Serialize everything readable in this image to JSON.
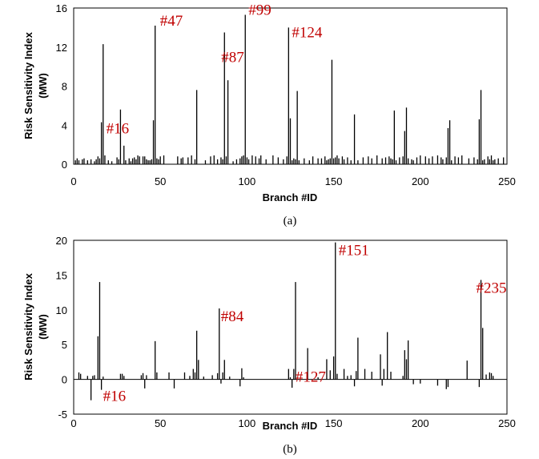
{
  "chart_data": [
    {
      "type": "bar",
      "caption": "(a)",
      "xlabel": "Branch #ID",
      "ylabel": "Risk Sensitivity Index (MW)",
      "xlim": [
        0,
        250
      ],
      "ylim": [
        0,
        16
      ],
      "xticks": [
        "0",
        "50",
        "100",
        "150",
        "200",
        "250"
      ],
      "yticks": [
        "0",
        "4",
        "8",
        "12",
        "16"
      ],
      "x": [
        1,
        2,
        3,
        5,
        6,
        8,
        10,
        12,
        13,
        14,
        15,
        16,
        17,
        18,
        20,
        22,
        25,
        26,
        27,
        29,
        30,
        32,
        33,
        34,
        35,
        36,
        37,
        38,
        40,
        41,
        42,
        43,
        44,
        45,
        46,
        47,
        48,
        49,
        50,
        52,
        60,
        62,
        63,
        66,
        68,
        70,
        71,
        76,
        79,
        81,
        83,
        85,
        86,
        87,
        88,
        89,
        92,
        94,
        96,
        97,
        98,
        99,
        100,
        101,
        103,
        105,
        107,
        108,
        111,
        115,
        118,
        121,
        123,
        124,
        125,
        126,
        127,
        128,
        129,
        130,
        133,
        136,
        138,
        141,
        143,
        145,
        146,
        147,
        148,
        149,
        150,
        151,
        152,
        153,
        155,
        156,
        158,
        160,
        162,
        164,
        167,
        170,
        172,
        175,
        178,
        180,
        182,
        183,
        184,
        185,
        186,
        188,
        190,
        191,
        192,
        193,
        195,
        196,
        198,
        200,
        203,
        205,
        207,
        210,
        212,
        213,
        215,
        216,
        217,
        218,
        220,
        222,
        224,
        228,
        231,
        233,
        234,
        235,
        236,
        237,
        239,
        240,
        241,
        242,
        243,
        245,
        248
      ],
      "values": [
        0.4,
        0.6,
        0.4,
        0.5,
        0.6,
        0.4,
        0.5,
        0.3,
        0.5,
        0.8,
        0.6,
        4.3,
        12.3,
        0.9,
        0.4,
        0.3,
        0.7,
        0.5,
        5.6,
        1.9,
        0.4,
        0.6,
        0.3,
        0.6,
        0.7,
        0.5,
        0.9,
        0.8,
        0.8,
        0.8,
        0.5,
        0.4,
        0.4,
        0.5,
        4.5,
        14.2,
        0.6,
        0.5,
        0.8,
        0.9,
        0.8,
        0.6,
        0.7,
        0.7,
        0.9,
        0.5,
        7.6,
        0.4,
        0.8,
        0.9,
        0.5,
        0.7,
        0.5,
        13.5,
        0.8,
        8.6,
        0.3,
        0.5,
        0.6,
        0.8,
        0.9,
        15.3,
        0.7,
        0.5,
        0.9,
        0.8,
        0.6,
        0.9,
        0.5,
        0.9,
        0.7,
        0.5,
        0.8,
        14.0,
        4.7,
        0.4,
        0.6,
        0.5,
        7.5,
        0.4,
        0.6,
        0.4,
        0.8,
        0.6,
        0.6,
        0.8,
        0.4,
        0.5,
        0.6,
        10.7,
        0.6,
        0.7,
        0.9,
        0.6,
        0.8,
        0.5,
        0.7,
        0.4,
        5.1,
        0.4,
        0.7,
        0.8,
        0.6,
        0.9,
        0.6,
        0.7,
        0.8,
        0.6,
        0.5,
        5.5,
        0.4,
        0.7,
        0.8,
        3.4,
        5.8,
        0.6,
        0.5,
        0.4,
        0.7,
        0.9,
        0.8,
        0.6,
        0.8,
        0.9,
        0.7,
        0.5,
        0.7,
        3.7,
        4.5,
        0.4,
        0.8,
        0.7,
        0.9,
        0.6,
        0.7,
        0.5,
        4.6,
        7.6,
        0.4,
        0.5,
        0.8,
        0.5,
        0.9,
        0.4,
        0.5,
        0.6,
        0.7
      ],
      "annotations": [
        {
          "label": "#16",
          "x": 16
        },
        {
          "label": "#47",
          "x": 47
        },
        {
          "label": "#87",
          "x": 87
        },
        {
          "label": "#99",
          "x": 99
        },
        {
          "label": "#124",
          "x": 124
        }
      ]
    },
    {
      "type": "bar",
      "caption": "(b)",
      "xlabel": "Branch #ID",
      "ylabel": "Risk Sensitivity Index (MW)",
      "xlim": [
        0,
        250
      ],
      "ylim": [
        -5,
        20
      ],
      "xticks": [
        "0",
        "50",
        "100",
        "150",
        "200",
        "250"
      ],
      "yticks": [
        "-5",
        "0",
        "5",
        "10",
        "15",
        "20"
      ],
      "x": [
        3,
        4,
        8,
        10,
        11,
        12,
        14,
        15,
        16,
        17,
        27,
        28,
        29,
        39,
        40,
        41,
        42,
        47,
        48,
        55,
        58,
        64,
        67,
        69,
        70,
        71,
        72,
        75,
        80,
        83,
        84,
        85,
        86,
        87,
        90,
        96,
        97,
        98,
        124,
        125,
        126,
        127,
        128,
        135,
        141,
        146,
        148,
        150,
        151,
        152,
        156,
        158,
        160,
        162,
        163,
        164,
        168,
        172,
        177,
        178,
        179,
        181,
        183,
        190,
        191,
        192,
        193,
        196,
        200,
        210,
        215,
        216,
        227,
        234,
        235,
        236,
        238,
        240,
        241,
        242
      ],
      "values": [
        1.0,
        0.8,
        0.5,
        -3.0,
        0.5,
        0.6,
        6.2,
        14.0,
        -1.5,
        0.4,
        0.8,
        0.8,
        0.5,
        0.6,
        0.9,
        -1.3,
        0.6,
        5.5,
        1.0,
        1.0,
        -1.3,
        1.0,
        0.5,
        1.5,
        1.0,
        7.0,
        2.8,
        0.4,
        0.6,
        0.9,
        10.2,
        -0.6,
        1.0,
        2.8,
        0.4,
        -1.0,
        1.6,
        0.3,
        1.5,
        0.3,
        -1.2,
        1.5,
        14.0,
        4.5,
        0.3,
        2.9,
        1.3,
        3.3,
        19.7,
        0.8,
        1.5,
        0.5,
        0.6,
        -1.0,
        1.2,
        6.0,
        1.5,
        1.1,
        3.6,
        -0.9,
        1.5,
        6.8,
        1.1,
        0.5,
        4.2,
        2.9,
        5.6,
        -0.7,
        -0.6,
        -0.9,
        -1.4,
        -1.1,
        2.7,
        -1.1,
        14.3,
        7.4,
        0.7,
        1.0,
        0.9,
        0.5
      ],
      "annotations": [
        {
          "label": "#16",
          "x": 16
        },
        {
          "label": "#84",
          "x": 84
        },
        {
          "label": "#127",
          "x": 127
        },
        {
          "label": "#151",
          "x": 151
        },
        {
          "label": "#235",
          "x": 235
        }
      ]
    }
  ]
}
